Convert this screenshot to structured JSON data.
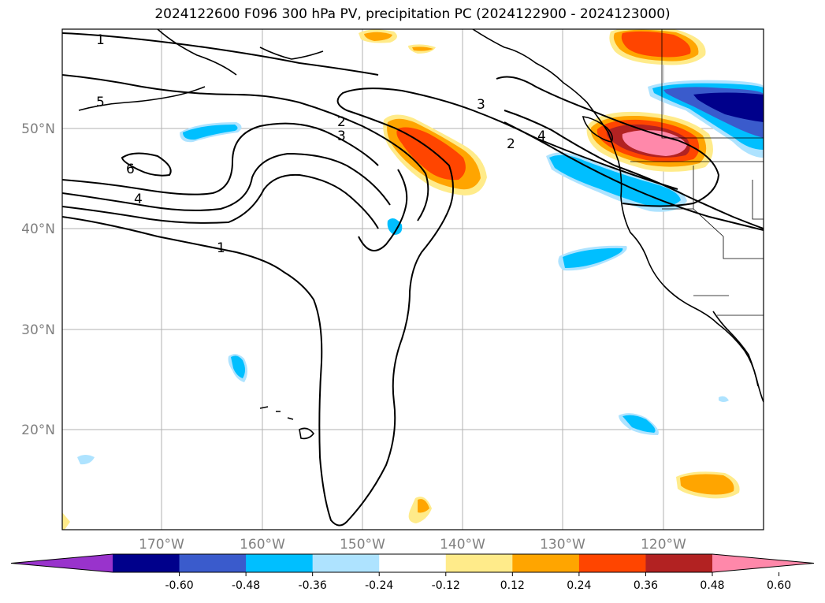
{
  "title": "2024122600 F096 300 hPa PV, precipitation PC (2024122900 - 2024123000)",
  "lat_labels": [
    "50°N",
    "40°N",
    "30°N",
    "20°N"
  ],
  "lon_labels": [
    "170°W",
    "160°W",
    "150°W",
    "140°W",
    "130°W",
    "120°W"
  ],
  "contour_labels": [
    "1",
    "5",
    "6",
    "4",
    "2",
    "3",
    "1",
    "3",
    "2",
    "4"
  ],
  "colorbar": {
    "colors": [
      "#9933cc",
      "#00008b",
      "#3a5bcc",
      "#00bfff",
      "#aee3ff",
      "#ffffff",
      "#ffeb8a",
      "#ffa500",
      "#ff4500",
      "#b22222",
      "#ff88aa"
    ],
    "tick_labels": [
      "-0.60",
      "-0.48",
      "-0.36",
      "-0.24",
      "-0.12",
      "0.12",
      "0.24",
      "0.36",
      "0.48",
      "0.60"
    ]
  }
}
